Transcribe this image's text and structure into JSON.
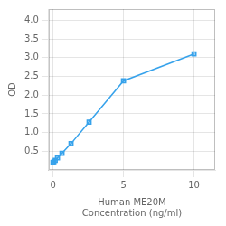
{
  "chart_data": {
    "type": "line",
    "xlabel": "Human ME20M\nConcentration (ng/ml)",
    "ylabel": "OD",
    "x": [
      0.0,
      0.064,
      0.16,
      0.32,
      0.64,
      1.28,
      2.56,
      5.0,
      10.0
    ],
    "values": [
      0.197,
      0.218,
      0.257,
      0.321,
      0.446,
      0.704,
      1.28,
      2.38,
      3.1
    ],
    "marker": "square",
    "xlim": [
      -0.3,
      11.5
    ],
    "ylim": [
      0.0,
      4.3
    ],
    "xticks": [
      0,
      5,
      10
    ],
    "yticks": [
      0.5,
      {
        "value": 1.0,
        "label": "1.0"
      },
      1.5,
      {
        "value": 2.0,
        "label": "2.0"
      },
      2.5,
      {
        "value": 3.0,
        "label": "3.0"
      },
      3.5,
      {
        "value": 4.0,
        "label": "4.0"
      }
    ],
    "grid": true
  }
}
